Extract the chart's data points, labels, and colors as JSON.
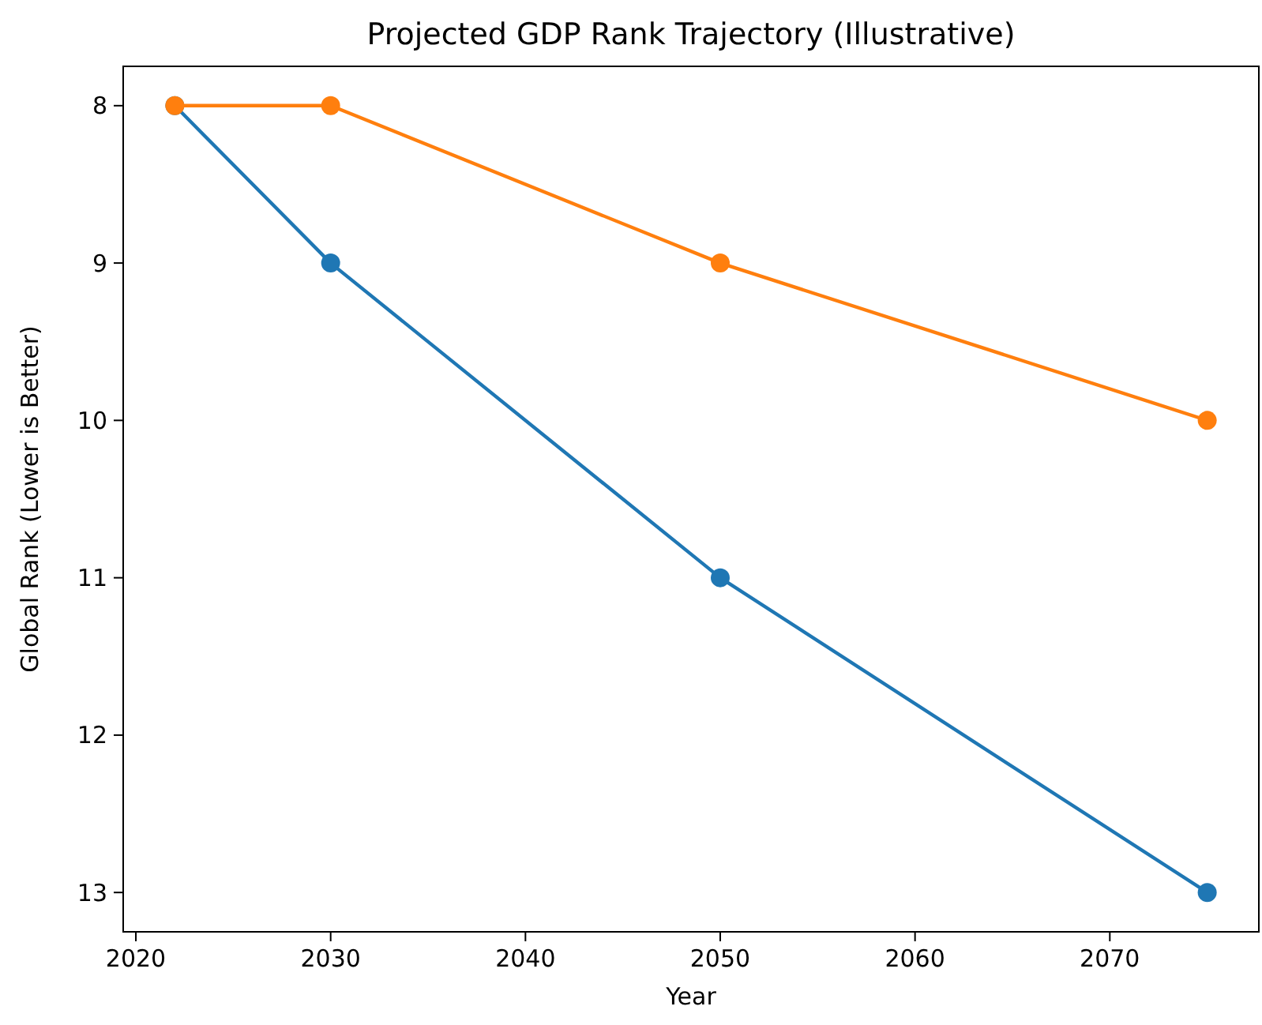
{
  "chart_data": {
    "type": "line",
    "title": "Projected GDP Rank Trajectory (Illustrative)",
    "xlabel": "Year",
    "ylabel": "Global Rank (Lower is Better)",
    "x": [
      2022,
      2030,
      2050,
      2075
    ],
    "series": [
      {
        "color": "#1f77b4",
        "values": [
          8,
          9,
          11,
          13
        ]
      },
      {
        "color": "#ff7f0e",
        "values": [
          8,
          8,
          9,
          10
        ]
      }
    ],
    "xlim": [
      2019.35,
      2077.65
    ],
    "xticks": [
      2020,
      2030,
      2040,
      2050,
      2060,
      2070
    ],
    "ylim": [
      13.25,
      7.75
    ],
    "yticks": [
      8,
      9,
      10,
      11,
      12,
      13
    ],
    "grid": false,
    "marker": "circle",
    "line_style": "solid"
  }
}
